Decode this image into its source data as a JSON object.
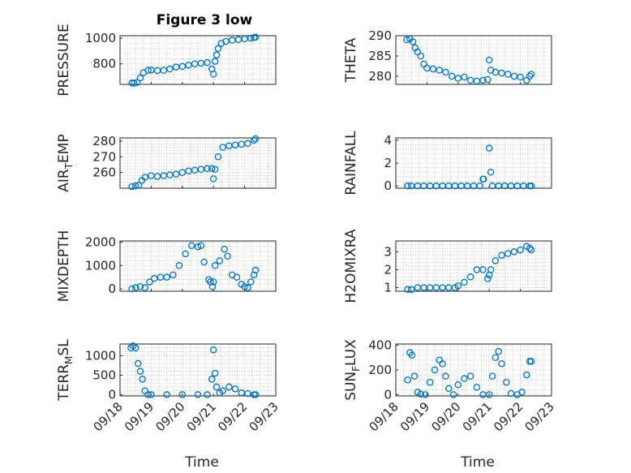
{
  "figure": {
    "title": "Figure 3 low",
    "marker_color": "#0072bd",
    "axis_color": "#262626"
  },
  "chart_data": [
    {
      "type": "scatter",
      "title": "Figure 3 low",
      "xlabel": "",
      "ylabel": "PRESSURE",
      "xlim": [
        "09/18",
        "09/23"
      ],
      "ylim": [
        640,
        1020
      ],
      "xticks": [
        "09/18",
        "09/19",
        "09/20",
        "09/21",
        "09/22",
        "09/23"
      ],
      "yticks": [
        800,
        1000
      ],
      "grid": true,
      "series": [
        {
          "x": [
            18.38,
            18.45,
            18.55,
            18.65,
            18.75,
            18.9,
            19.0,
            19.2,
            19.4,
            19.6,
            19.8,
            20.0,
            20.2,
            20.4,
            20.6,
            20.8,
            20.95,
            21.0,
            21.05,
            21.1,
            21.15,
            21.25,
            21.4,
            21.6,
            21.8,
            22.0,
            22.2,
            22.3,
            22.35
          ],
          "y": [
            650,
            650,
            655,
            690,
            730,
            750,
            752,
            748,
            750,
            760,
            775,
            780,
            790,
            800,
            805,
            810,
            760,
            720,
            820,
            870,
            920,
            960,
            975,
            985,
            990,
            995,
            1000,
            1005,
            1008
          ]
        }
      ]
    },
    {
      "type": "scatter",
      "xlabel": "",
      "ylabel": "THETA",
      "xlim": [
        "09/18",
        "09/23"
      ],
      "ylim": [
        278,
        290
      ],
      "xticks": [
        "09/18",
        "09/19",
        "09/20",
        "09/21",
        "09/22",
        "09/23"
      ],
      "yticks": [
        280,
        285,
        290
      ],
      "grid": true,
      "series": [
        {
          "x": [
            18.35,
            18.45,
            18.55,
            18.62,
            18.7,
            18.8,
            18.9,
            19.0,
            19.2,
            19.4,
            19.6,
            19.8,
            20.0,
            20.2,
            20.4,
            20.6,
            20.8,
            20.95,
            21.0,
            21.05,
            21.2,
            21.4,
            21.6,
            21.8,
            22.0,
            22.2,
            22.3,
            22.35
          ],
          "y": [
            289,
            289.2,
            288.5,
            287,
            286,
            285,
            283,
            282,
            281.8,
            281.5,
            281,
            280,
            279.5,
            279.8,
            279,
            278.8,
            279,
            279.2,
            284,
            281.5,
            281,
            280.8,
            280.5,
            280,
            279.8,
            279,
            280,
            280.5
          ]
        }
      ]
    },
    {
      "type": "scatter",
      "xlabel": "",
      "ylabel": "AIR_TEMP",
      "xlim": [
        "09/18",
        "09/23"
      ],
      "ylim": [
        250,
        282
      ],
      "xticks": [
        "09/18",
        "09/19",
        "09/20",
        "09/21",
        "09/22",
        "09/23"
      ],
      "yticks": [
        260,
        270,
        280
      ],
      "grid": true,
      "series": [
        {
          "x": [
            18.38,
            18.5,
            18.6,
            18.7,
            18.8,
            19.0,
            19.2,
            19.4,
            19.6,
            19.8,
            20.0,
            20.2,
            20.4,
            20.6,
            20.8,
            20.95,
            21.0,
            21.05,
            21.15,
            21.3,
            21.5,
            21.7,
            21.9,
            22.1,
            22.3,
            22.35
          ],
          "y": [
            251,
            251.5,
            252,
            255,
            257,
            258,
            257.5,
            258,
            258.5,
            259,
            260,
            261,
            261.5,
            262,
            262.5,
            262.5,
            256,
            262,
            270,
            276,
            277,
            277.5,
            278,
            278.5,
            280.5,
            281.5
          ]
        }
      ]
    },
    {
      "type": "scatter",
      "xlabel": "",
      "ylabel": "RAINFALL",
      "xlim": [
        "09/18",
        "09/23"
      ],
      "ylim": [
        -0.2,
        4.2
      ],
      "xticks": [
        "09/18",
        "09/19",
        "09/20",
        "09/21",
        "09/22",
        "09/23"
      ],
      "yticks": [
        0,
        2,
        4
      ],
      "grid": true,
      "series": [
        {
          "x": [
            18.38,
            18.5,
            18.7,
            18.9,
            19.1,
            19.3,
            19.5,
            19.7,
            19.9,
            20.1,
            20.3,
            20.5,
            20.7,
            20.8,
            20.82,
            21.0,
            21.05,
            21.1,
            21.3,
            21.5,
            21.7,
            21.9,
            22.1,
            22.3,
            22.35
          ],
          "y": [
            0,
            0,
            0,
            0,
            0,
            0,
            0,
            0,
            0,
            0,
            0,
            0,
            0,
            0.6,
            0.6,
            3.3,
            1.2,
            0,
            0,
            0,
            0,
            0,
            0,
            0,
            0
          ]
        }
      ]
    },
    {
      "type": "scatter",
      "xlabel": "",
      "ylabel": "MIXDEPTH",
      "xlim": [
        "09/18",
        "09/23"
      ],
      "ylim": [
        -100,
        2050
      ],
      "xticks": [
        "09/18",
        "09/19",
        "09/20",
        "09/21",
        "09/22",
        "09/23"
      ],
      "yticks": [
        0,
        1000,
        2000
      ],
      "grid": true,
      "series": [
        {
          "x": [
            18.38,
            18.5,
            18.65,
            18.8,
            18.95,
            19.1,
            19.3,
            19.5,
            19.7,
            19.9,
            20.1,
            20.3,
            20.5,
            20.6,
            20.7,
            20.85,
            20.9,
            20.97,
            21.0,
            21.05,
            21.2,
            21.35,
            21.45,
            21.6,
            21.75,
            21.9,
            22.0,
            22.1,
            22.2,
            22.3,
            22.35
          ],
          "y": [
            0,
            50,
            100,
            50,
            300,
            450,
            500,
            500,
            600,
            1000,
            1500,
            1850,
            1800,
            1850,
            1150,
            400,
            300,
            100,
            300,
            1000,
            1200,
            1700,
            1400,
            600,
            500,
            200,
            100,
            50,
            300,
            600,
            800
          ]
        }
      ]
    },
    {
      "type": "scatter",
      "xlabel": "",
      "ylabel": "H2OMIXRA",
      "xlim": [
        "09/18",
        "09/23"
      ],
      "ylim": [
        0.8,
        3.6
      ],
      "xticks": [
        "09/18",
        "09/19",
        "09/20",
        "09/21",
        "09/22",
        "09/23"
      ],
      "yticks": [
        1,
        2,
        3
      ],
      "grid": true,
      "series": [
        {
          "x": [
            18.38,
            18.5,
            18.7,
            18.9,
            19.1,
            19.3,
            19.5,
            19.7,
            19.9,
            20.0,
            20.2,
            20.4,
            20.6,
            20.8,
            20.95,
            21.0,
            21.05,
            21.2,
            21.4,
            21.6,
            21.8,
            22.0,
            22.2,
            22.3,
            22.35
          ],
          "y": [
            0.9,
            0.9,
            1.0,
            1.0,
            1.0,
            1.0,
            1.0,
            1.0,
            1.0,
            1.1,
            1.3,
            1.6,
            2.0,
            2.0,
            1.5,
            1.7,
            2.0,
            2.5,
            2.8,
            2.9,
            3.0,
            3.1,
            3.3,
            3.2,
            3.1
          ]
        }
      ]
    },
    {
      "type": "scatter",
      "xlabel": "Time",
      "ylabel": "TERR_MSL",
      "xlim": [
        "09/18",
        "09/23"
      ],
      "ylim": [
        -30,
        1300
      ],
      "xticks": [
        "09/18",
        "09/19",
        "09/20",
        "09/21",
        "09/22",
        "09/23"
      ],
      "yticks": [
        0,
        500,
        1000
      ],
      "grid": true,
      "series": [
        {
          "x": [
            18.35,
            18.42,
            18.5,
            18.58,
            18.65,
            18.72,
            18.8,
            18.9,
            19.0,
            19.5,
            20.0,
            20.5,
            20.8,
            20.95,
            21.0,
            21.05,
            21.1,
            21.2,
            21.3,
            21.5,
            21.7,
            21.9,
            22.1,
            22.3,
            22.35
          ],
          "y": [
            1200,
            1250,
            1200,
            800,
            600,
            400,
            100,
            0,
            0,
            0,
            0,
            0,
            0,
            400,
            1150,
            550,
            200,
            50,
            100,
            200,
            150,
            50,
            30,
            0,
            0
          ]
        }
      ]
    },
    {
      "type": "scatter",
      "xlabel": "Time",
      "ylabel": "SUN_FLUX",
      "xlim": [
        "09/18",
        "09/23"
      ],
      "ylim": [
        -10,
        410
      ],
      "xticks": [
        "09/18",
        "09/19",
        "09/20",
        "09/21",
        "09/22",
        "09/23"
      ],
      "yticks": [
        0,
        200,
        400
      ],
      "grid": true,
      "series": [
        {
          "x": [
            18.38,
            18.45,
            18.52,
            18.6,
            18.7,
            18.8,
            18.95,
            19.1,
            19.25,
            19.4,
            19.5,
            19.6,
            19.7,
            19.85,
            20.0,
            20.2,
            20.4,
            20.6,
            20.8,
            21.0,
            21.1,
            21.2,
            21.3,
            21.4,
            21.55,
            21.7,
            21.9,
            22.05,
            22.2,
            22.3,
            22.35
          ],
          "y": [
            120,
            340,
            320,
            150,
            20,
            5,
            0,
            100,
            200,
            280,
            250,
            150,
            50,
            0,
            80,
            130,
            150,
            60,
            0,
            0,
            150,
            300,
            350,
            250,
            100,
            10,
            0,
            20,
            160,
            270,
            270
          ]
        }
      ]
    }
  ]
}
